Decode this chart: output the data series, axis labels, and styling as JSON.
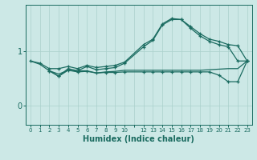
{
  "xlabel": "Humidex (Indice chaleur)",
  "bg_color": "#cce8e6",
  "line_color": "#1a6b60",
  "grid_color": "#aad0cc",
  "yticks": [
    0,
    1
  ],
  "ylim": [
    -0.35,
    1.85
  ],
  "xlim": [
    -0.5,
    23.5
  ],
  "xtick_labels": [
    "0",
    "1",
    "2",
    "3",
    "4",
    "5",
    "6",
    "7",
    "8",
    "9",
    "10",
    "",
    "12",
    "13",
    "14",
    "15",
    "16",
    "17",
    "18",
    "19",
    "20",
    "21",
    "22",
    "23"
  ],
  "line1_x": [
    0,
    1,
    2,
    3,
    4,
    5,
    6,
    7,
    8,
    9,
    10,
    12,
    13,
    14,
    15,
    16,
    17,
    18,
    19,
    20,
    21,
    22,
    23
  ],
  "line1_y": [
    0.82,
    0.78,
    0.68,
    0.68,
    0.72,
    0.68,
    0.74,
    0.7,
    0.72,
    0.74,
    0.8,
    1.12,
    1.22,
    1.5,
    1.6,
    1.58,
    1.45,
    1.32,
    1.22,
    1.18,
    1.12,
    1.1,
    0.82
  ],
  "line2_x": [
    0,
    1,
    2,
    3,
    4,
    5,
    6,
    7,
    8,
    9,
    10,
    12,
    13,
    14,
    15,
    16,
    17,
    18,
    19,
    20,
    21,
    22,
    23
  ],
  "line2_y": [
    0.82,
    0.76,
    0.64,
    0.58,
    0.65,
    0.64,
    0.64,
    0.6,
    0.62,
    0.63,
    0.65,
    0.65,
    0.65,
    0.65,
    0.65,
    0.65,
    0.65,
    0.65,
    0.66,
    0.67,
    0.68,
    0.68,
    0.82
  ],
  "line3_x": [
    2,
    3,
    4,
    5,
    6,
    7,
    8,
    9,
    10,
    12,
    13,
    14,
    15,
    16,
    17,
    18,
    19,
    20,
    21,
    22,
    23
  ],
  "line3_y": [
    0.64,
    0.54,
    0.68,
    0.64,
    0.72,
    0.66,
    0.68,
    0.7,
    0.78,
    1.08,
    1.2,
    1.48,
    1.58,
    1.58,
    1.42,
    1.28,
    1.18,
    1.12,
    1.08,
    0.82,
    0.82
  ],
  "line4_x": [
    2,
    3,
    4,
    5,
    6,
    7,
    8,
    9,
    10,
    12,
    13,
    14,
    15,
    16,
    17,
    18,
    19,
    20,
    21,
    22,
    23
  ],
  "line4_y": [
    0.64,
    0.54,
    0.65,
    0.62,
    0.63,
    0.6,
    0.61,
    0.61,
    0.62,
    0.62,
    0.62,
    0.62,
    0.62,
    0.62,
    0.62,
    0.62,
    0.62,
    0.56,
    0.44,
    0.44,
    0.82
  ]
}
